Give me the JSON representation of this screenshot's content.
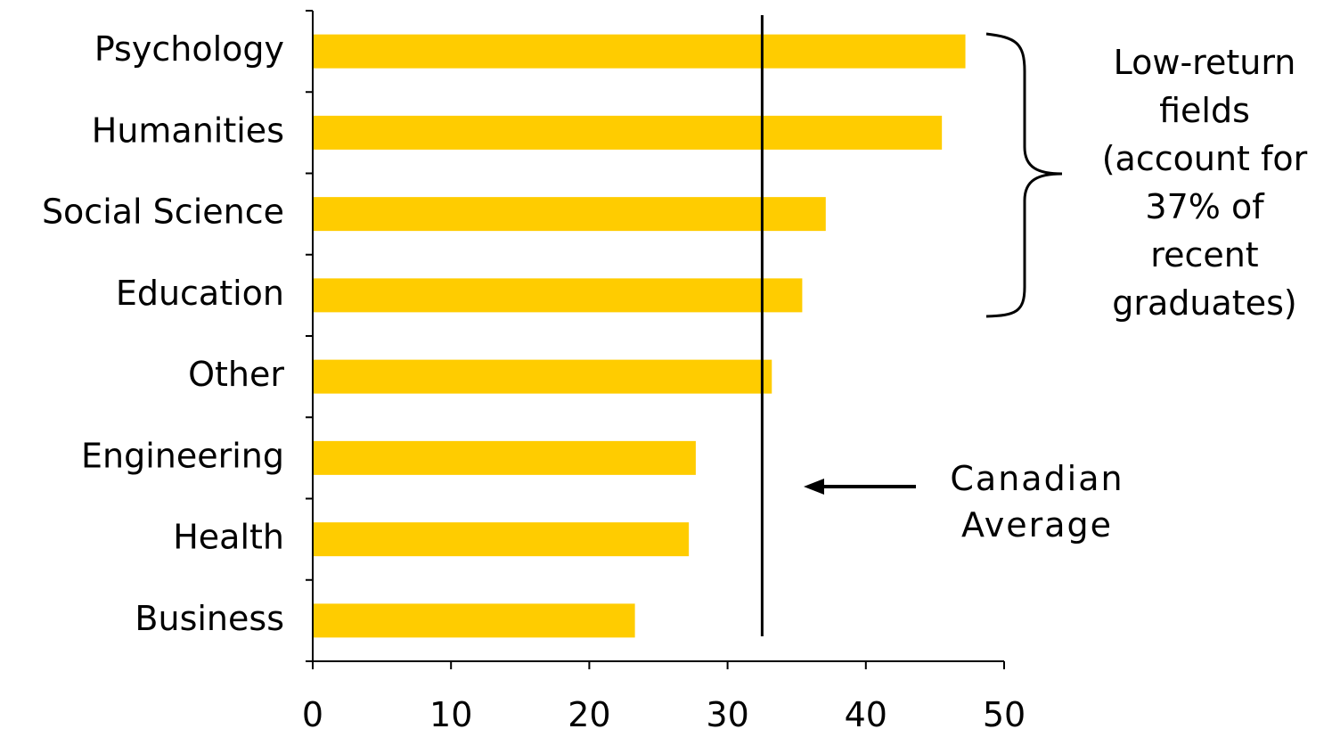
{
  "chart_data": {
    "type": "bar",
    "orientation": "horizontal",
    "categories": [
      "Psychology",
      "Humanities",
      "Social Science",
      "Education",
      "Other",
      "Engineering",
      "Health ",
      "Business"
    ],
    "values": [
      47.2,
      45.5,
      37.1,
      35.4,
      33.2,
      27.7,
      27.2,
      23.3
    ],
    "xlim": [
      0,
      50
    ],
    "xticks": [
      0,
      10,
      20,
      30,
      40,
      50
    ],
    "bar_color": "#FFCC00",
    "grid": false,
    "average": {
      "value": 32.5,
      "label_lines": [
        "Canadian",
        "Average"
      ]
    },
    "bracket": {
      "span": [
        "Psychology",
        "Education"
      ],
      "label_lines": [
        "Low-return",
        "fields",
        "(account for",
        "37% of",
        "recent",
        "graduates)"
      ]
    }
  }
}
